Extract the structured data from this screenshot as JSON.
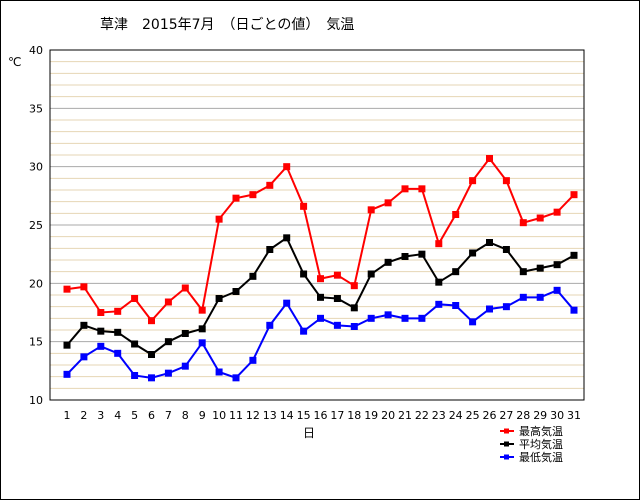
{
  "chart_data": {
    "type": "line",
    "title": "草津　2015年7月　（日ごとの値）　気温",
    "xlabel": "日",
    "ylabel": "℃",
    "categories": [
      "1",
      "2",
      "3",
      "4",
      "5",
      "6",
      "7",
      "8",
      "9",
      "10",
      "11",
      "12",
      "13",
      "14",
      "15",
      "16",
      "17",
      "18",
      "19",
      "20",
      "21",
      "22",
      "23",
      "24",
      "25",
      "26",
      "27",
      "28",
      "29",
      "30",
      "31"
    ],
    "ylim": [
      10,
      40
    ],
    "yticks": [
      10,
      15,
      20,
      25,
      30,
      35,
      40
    ],
    "grid": "horizontal minor lines every 1, major every 5",
    "legend_position": "bottom-right",
    "series": [
      {
        "name": "最高気温",
        "color": "#ff0000",
        "values": [
          19.5,
          19.7,
          17.5,
          17.6,
          18.7,
          16.8,
          18.4,
          19.6,
          17.7,
          25.5,
          27.3,
          27.6,
          28.4,
          30.0,
          26.6,
          20.4,
          20.7,
          19.8,
          26.3,
          26.9,
          28.1,
          28.1,
          23.4,
          25.9,
          28.8,
          30.7,
          28.8,
          25.2,
          25.6,
          26.1,
          27.6
        ]
      },
      {
        "name": "平均気温",
        "color": "#000000",
        "values": [
          14.7,
          16.4,
          15.9,
          15.8,
          14.8,
          13.9,
          15.0,
          15.7,
          16.1,
          18.7,
          19.3,
          20.6,
          22.9,
          23.9,
          20.8,
          18.8,
          18.7,
          17.9,
          20.8,
          21.8,
          22.3,
          22.5,
          20.1,
          21.0,
          22.6,
          23.5,
          22.9,
          21.0,
          21.3,
          21.6,
          22.4
        ]
      },
      {
        "name": "最低気温",
        "color": "#0000ff",
        "values": [
          12.2,
          13.7,
          14.6,
          14.0,
          12.1,
          11.9,
          12.3,
          12.9,
          14.9,
          12.4,
          11.9,
          13.4,
          16.4,
          18.3,
          15.9,
          17.0,
          16.4,
          16.3,
          17.0,
          17.3,
          17.0,
          17.0,
          18.2,
          18.1,
          16.7,
          17.8,
          18.0,
          18.8,
          18.8,
          19.4,
          17.7
        ]
      }
    ]
  }
}
